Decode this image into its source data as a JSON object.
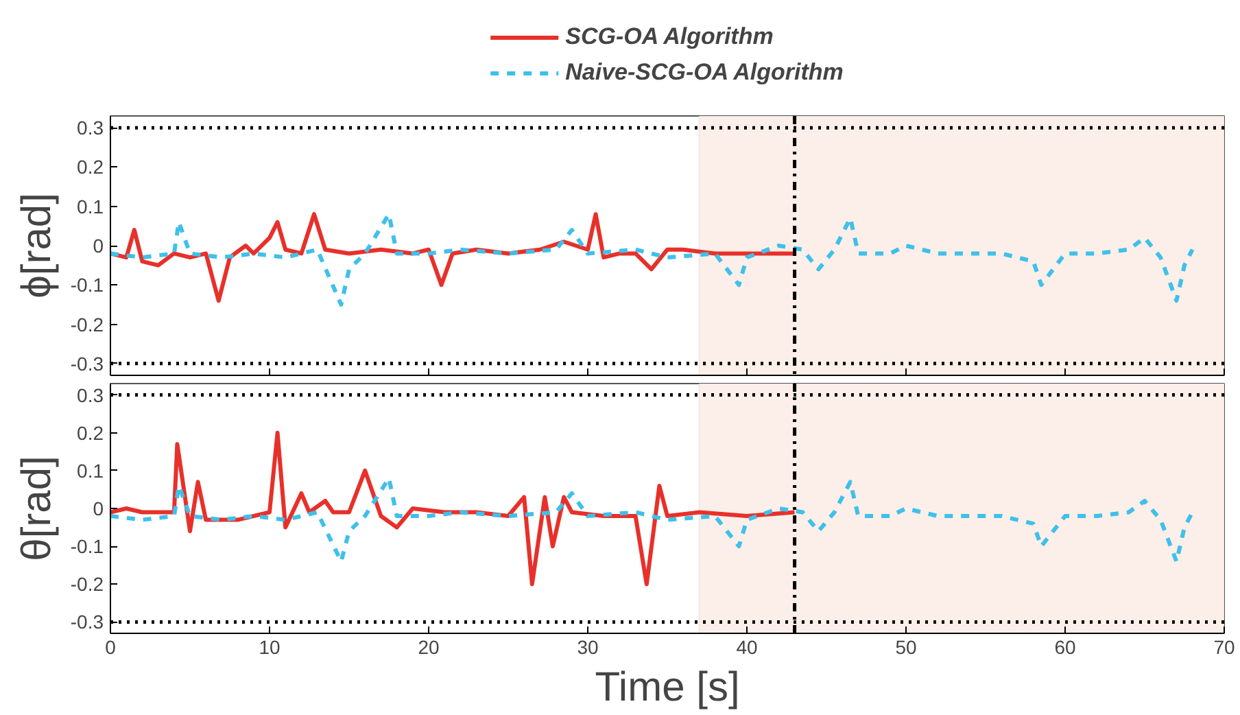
{
  "chart_data": [
    {
      "type": "line",
      "ylabel": "ϕ[rad]",
      "xlim": [
        0,
        70
      ],
      "xticks": [
        0,
        10,
        20,
        30,
        40,
        50,
        60,
        70
      ],
      "ylim": [
        -0.33,
        0.33
      ],
      "yticks": [
        -0.3,
        -0.2,
        -0.1,
        0,
        0.1,
        0.2,
        0.3
      ],
      "tick_labels": "y",
      "grid": false,
      "legend": "top",
      "series": [
        {
          "name": "SCG-OA Algorithm",
          "color": "#e8302a",
          "line_style": "solid",
          "x": [
            0,
            1,
            1.5,
            2,
            3,
            4,
            5,
            6,
            6.8,
            7.5,
            8.5,
            9,
            10,
            10.5,
            11,
            12,
            12.8,
            13.5,
            15,
            17,
            19,
            20,
            20.8,
            21.5,
            23,
            25,
            27,
            28.5,
            30,
            30.5,
            31,
            32,
            33,
            34,
            35,
            36,
            38,
            40,
            43
          ],
          "values": [
            -0.02,
            -0.03,
            0.04,
            -0.04,
            -0.05,
            -0.02,
            -0.03,
            -0.02,
            -0.14,
            -0.03,
            0,
            -0.02,
            0.02,
            0.06,
            -0.01,
            -0.02,
            0.08,
            -0.01,
            -0.02,
            -0.01,
            -0.02,
            -0.01,
            -0.1,
            -0.02,
            -0.01,
            -0.02,
            -0.01,
            0.01,
            -0.01,
            0.08,
            -0.03,
            -0.02,
            -0.02,
            -0.06,
            -0.01,
            -0.01,
            -0.02,
            -0.02,
            -0.02
          ]
        },
        {
          "name": "Naive-SCG-OA Algorithm",
          "color": "#3fc0ea",
          "line_style": "dashed",
          "x": [
            0,
            2,
            4,
            4.3,
            5,
            7,
            9,
            11,
            13,
            14.5,
            15,
            16,
            17.5,
            18,
            20,
            22,
            25,
            28,
            29,
            30,
            33,
            35,
            38,
            39.5,
            40,
            42,
            43.5,
            44.5,
            45.5,
            46.5,
            47,
            49,
            50,
            52,
            54,
            56,
            58,
            58.5,
            60,
            62,
            64,
            65,
            66,
            67,
            67.5,
            68
          ],
          "values": [
            -0.02,
            -0.03,
            -0.02,
            0.06,
            -0.02,
            -0.03,
            -0.02,
            -0.03,
            -0.01,
            -0.15,
            -0.06,
            -0.02,
            0.08,
            -0.02,
            -0.02,
            -0.01,
            -0.02,
            -0.01,
            0.04,
            -0.02,
            -0.01,
            -0.03,
            -0.02,
            -0.1,
            -0.03,
            0,
            -0.01,
            -0.06,
            -0.01,
            0.07,
            -0.02,
            -0.02,
            0,
            -0.02,
            -0.02,
            -0.02,
            -0.04,
            -0.1,
            -0.02,
            -0.02,
            -0.01,
            0.02,
            -0.03,
            -0.14,
            -0.05,
            -0.01
          ]
        }
      ],
      "ref_lines": [
        {
          "axis": "y",
          "value": 0.3,
          "line_style": "dotted",
          "color": "#000000"
        },
        {
          "axis": "y",
          "value": -0.3,
          "line_style": "dotted",
          "color": "#000000"
        },
        {
          "axis": "x",
          "value": 43,
          "line_style": "dashdot",
          "color": "#000000"
        }
      ],
      "bands": [
        {
          "axis": "x",
          "from": 37,
          "to": 70,
          "color": "#fcefe9"
        }
      ]
    },
    {
      "type": "line",
      "ylabel": "θ[rad]",
      "xlabel": "Time [s]",
      "xlim": [
        0,
        70
      ],
      "xticks": [
        0,
        10,
        20,
        30,
        40,
        50,
        60,
        70
      ],
      "ylim": [
        -0.33,
        0.33
      ],
      "yticks": [
        -0.3,
        -0.2,
        -0.1,
        0,
        0.1,
        0.2,
        0.3
      ],
      "grid": false,
      "legend": false,
      "series": [
        {
          "color": "#e8302a",
          "line_style": "solid",
          "x": [
            0,
            1,
            2,
            4,
            4.2,
            5,
            5.5,
            6,
            8,
            10,
            10.5,
            11,
            12,
            12.5,
            13.5,
            14,
            15,
            16,
            17,
            18,
            19,
            21,
            23,
            25,
            26,
            26.5,
            27.3,
            27.8,
            28.5,
            29,
            31,
            33,
            33.7,
            34.5,
            35,
            37,
            40,
            43
          ],
          "values": [
            -0.01,
            0,
            -0.01,
            -0.01,
            0.17,
            -0.06,
            0.07,
            -0.03,
            -0.03,
            -0.01,
            0.2,
            -0.05,
            0.04,
            -0.01,
            0.02,
            -0.01,
            -0.01,
            0.1,
            -0.02,
            -0.05,
            0,
            -0.01,
            -0.01,
            -0.02,
            0.03,
            -0.2,
            0.03,
            -0.1,
            0.03,
            -0.01,
            -0.02,
            -0.02,
            -0.2,
            0.06,
            -0.02,
            -0.01,
            -0.02,
            -0.01
          ]
        },
        {
          "color": "#3fc0ea",
          "line_style": "dashed",
          "x": [
            0,
            2,
            4,
            4.3,
            5,
            7,
            9,
            11,
            13,
            14.5,
            15,
            16,
            17.5,
            18,
            20,
            22,
            25,
            28,
            29,
            30,
            33,
            35,
            38,
            39.5,
            40,
            42,
            43.5,
            44.5,
            45.5,
            46.5,
            47,
            49,
            50,
            52,
            54,
            56,
            58,
            58.5,
            60,
            62,
            64,
            65,
            66,
            67,
            67.5,
            68
          ],
          "values": [
            -0.02,
            -0.03,
            -0.02,
            0.06,
            -0.02,
            -0.03,
            -0.02,
            -0.03,
            -0.01,
            -0.14,
            -0.06,
            -0.02,
            0.08,
            -0.02,
            -0.02,
            -0.01,
            -0.02,
            -0.01,
            0.04,
            -0.02,
            -0.01,
            -0.03,
            -0.02,
            -0.1,
            -0.03,
            0,
            -0.01,
            -0.06,
            -0.01,
            0.07,
            -0.02,
            -0.02,
            0,
            -0.02,
            -0.02,
            -0.02,
            -0.04,
            -0.1,
            -0.02,
            -0.02,
            -0.01,
            0.02,
            -0.03,
            -0.14,
            -0.05,
            -0.01
          ]
        }
      ],
      "ref_lines": [
        {
          "axis": "y",
          "value": 0.3,
          "line_style": "dotted",
          "color": "#000000"
        },
        {
          "axis": "y",
          "value": -0.3,
          "line_style": "dotted",
          "color": "#000000"
        },
        {
          "axis": "x",
          "value": 43,
          "line_style": "dashdot",
          "color": "#000000"
        }
      ],
      "bands": [
        {
          "axis": "x",
          "from": 37,
          "to": 70,
          "color": "#fcefe9"
        }
      ]
    }
  ]
}
